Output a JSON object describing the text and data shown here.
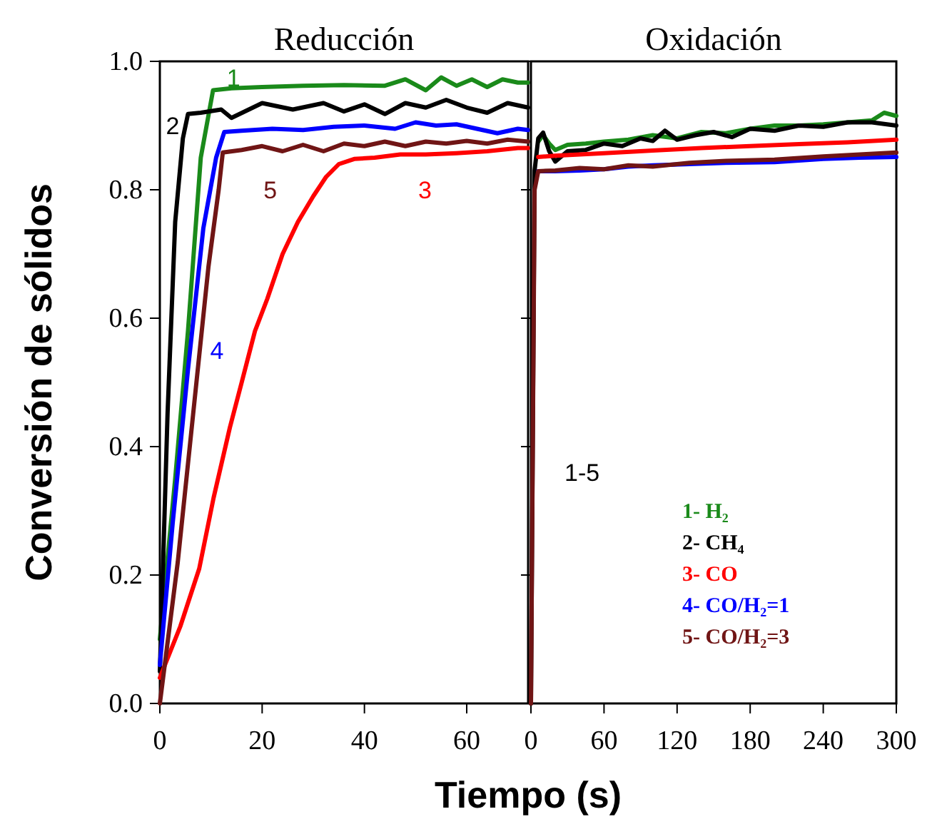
{
  "chart_data": [
    {
      "type": "line",
      "title": "Reducción",
      "ylabel": "Conversión de sólidos",
      "xlabel": "Tiempo (s)",
      "xlim": [
        0,
        72
      ],
      "xticks": [
        0,
        20,
        40,
        60
      ],
      "ylim": [
        0,
        1
      ],
      "yticks": [
        {
          "value": 0,
          "label": "0.0"
        },
        {
          "value": 0.2,
          "label": "0.2"
        },
        {
          "value": 0.4,
          "label": "0.4"
        },
        {
          "value": 0.6,
          "label": "0.6"
        },
        {
          "value": 0.8,
          "label": "0.8"
        },
        {
          "value": 1,
          "label": "1.0"
        }
      ],
      "grid": false,
      "legend": false,
      "tick_labels": "xy",
      "series": [
        {
          "color": "#1a8a1a",
          "x": [
            0,
            3,
            5.5,
            8,
            10.4,
            14,
            20,
            28,
            36,
            44,
            48,
            52,
            55,
            58,
            61,
            64,
            67,
            70,
            72
          ],
          "values": [
            0.1,
            0.35,
            0.58,
            0.85,
            0.955,
            0.958,
            0.96,
            0.962,
            0.963,
            0.962,
            0.972,
            0.955,
            0.975,
            0.962,
            0.972,
            0.96,
            0.972,
            0.967,
            0.967
          ]
        },
        {
          "color": "#000000",
          "x": [
            0,
            1.5,
            3,
            4.5,
            5.5,
            8,
            12,
            14,
            20,
            26,
            32,
            36,
            40,
            44,
            48,
            52,
            56,
            60,
            64,
            68,
            72
          ],
          "values": [
            0.05,
            0.45,
            0.75,
            0.88,
            0.918,
            0.92,
            0.925,
            0.912,
            0.935,
            0.925,
            0.935,
            0.922,
            0.933,
            0.918,
            0.935,
            0.928,
            0.94,
            0.928,
            0.92,
            0.935,
            0.928
          ]
        },
        {
          "color": "#ff0000",
          "x": [
            0,
            4,
            7.7,
            10.5,
            13.7,
            16,
            18.6,
            21,
            24,
            27,
            30,
            32.5,
            35,
            38,
            42,
            47,
            52,
            58,
            64,
            70,
            72
          ],
          "values": [
            0.04,
            0.12,
            0.21,
            0.32,
            0.43,
            0.5,
            0.58,
            0.63,
            0.7,
            0.75,
            0.79,
            0.82,
            0.84,
            0.848,
            0.85,
            0.855,
            0.855,
            0.857,
            0.86,
            0.865,
            0.865
          ]
        },
        {
          "color": "#0000ff",
          "x": [
            0,
            2.5,
            5.5,
            8.5,
            11,
            12.6,
            16,
            22,
            28,
            34,
            40,
            46,
            50,
            54,
            58,
            62,
            66,
            70,
            72
          ],
          "values": [
            0.06,
            0.28,
            0.52,
            0.74,
            0.85,
            0.89,
            0.892,
            0.895,
            0.893,
            0.898,
            0.9,
            0.895,
            0.905,
            0.9,
            0.902,
            0.895,
            0.888,
            0.895,
            0.893
          ]
        },
        {
          "color": "#701515",
          "x": [
            0,
            3.5,
            6.5,
            9.5,
            11.5,
            12.3,
            16,
            20,
            24,
            28,
            32,
            36,
            40,
            44,
            48,
            52,
            56,
            60,
            64,
            68,
            72
          ],
          "values": [
            0,
            0.22,
            0.45,
            0.68,
            0.8,
            0.858,
            0.862,
            0.868,
            0.86,
            0.87,
            0.86,
            0.872,
            0.868,
            0.875,
            0.868,
            0.875,
            0.872,
            0.876,
            0.872,
            0.878,
            0.875
          ]
        }
      ],
      "annotations": [
        "1",
        "2",
        "3",
        "4",
        "5"
      ]
    },
    {
      "type": "line",
      "title": "Oxidación",
      "xlim": [
        0,
        300
      ],
      "xticks": [
        0,
        60,
        120,
        180,
        240,
        300
      ],
      "ylim": [
        0,
        1
      ],
      "yticks": [
        0,
        0.2,
        0.4,
        0.6,
        0.8,
        1
      ],
      "grid": false,
      "legend": "bottom right",
      "tick_labels": "x",
      "series": [
        {
          "name": "1- H₂",
          "color": "#1a8a1a",
          "x": [
            6,
            10,
            15,
            20,
            30,
            45,
            60,
            80,
            100,
            120,
            140,
            160,
            180,
            200,
            220,
            240,
            260,
            280,
            290,
            300
          ],
          "values": [
            0.875,
            0.885,
            0.872,
            0.862,
            0.87,
            0.872,
            0.875,
            0.878,
            0.885,
            0.88,
            0.89,
            0.888,
            0.895,
            0.9,
            0.9,
            0.902,
            0.905,
            0.908,
            0.92,
            0.915
          ]
        },
        {
          "name": "2- CH₄",
          "color": "#000000",
          "x": [
            0,
            3,
            6,
            10,
            15,
            20,
            30,
            45,
            60,
            75,
            90,
            100,
            110,
            120,
            135,
            150,
            165,
            180,
            200,
            220,
            240,
            260,
            280,
            300
          ],
          "values": [
            0,
            0.83,
            0.88,
            0.889,
            0.86,
            0.844,
            0.86,
            0.862,
            0.872,
            0.868,
            0.88,
            0.876,
            0.892,
            0.878,
            0.885,
            0.89,
            0.882,
            0.895,
            0.892,
            0.9,
            0.898,
            0.905,
            0.905,
            0.9
          ]
        },
        {
          "name": "3- CO",
          "color": "#ff0000",
          "x": [
            6,
            20,
            60,
            100,
            140,
            180,
            220,
            260,
            300
          ],
          "values": [
            0.851,
            0.853,
            0.857,
            0.861,
            0.865,
            0.868,
            0.871,
            0.874,
            0.878
          ]
        },
        {
          "name": "4- CO/H₂=1",
          "color": "#0000ff",
          "x": [
            6,
            20,
            40,
            60,
            80,
            100,
            130,
            160,
            200,
            240,
            270,
            300
          ],
          "values": [
            0.829,
            0.829,
            0.83,
            0.832,
            0.836,
            0.838,
            0.84,
            0.842,
            0.843,
            0.848,
            0.85,
            0.851
          ]
        },
        {
          "name": "5- CO/H₂=3",
          "color": "#701515",
          "x": [
            0,
            3,
            6,
            20,
            40,
            60,
            80,
            100,
            130,
            160,
            200,
            240,
            270,
            300
          ],
          "values": [
            0,
            0.8,
            0.829,
            0.83,
            0.834,
            0.832,
            0.838,
            0.836,
            0.842,
            0.845,
            0.847,
            0.852,
            0.855,
            0.858
          ]
        }
      ],
      "annotations": [
        "1-5"
      ]
    }
  ]
}
